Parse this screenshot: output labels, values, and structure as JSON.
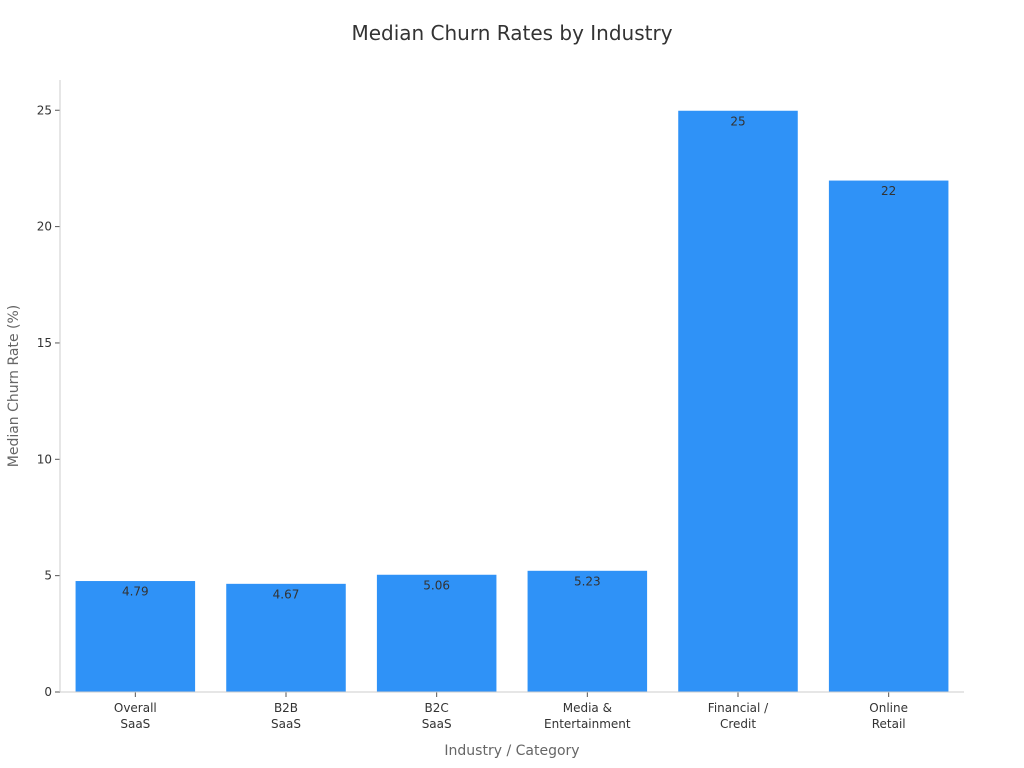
{
  "chart_data": {
    "type": "bar",
    "title": "Median Churn Rates by Industry",
    "xlabel": "Industry / Category",
    "ylabel": "Median Churn Rate (%)",
    "categories": [
      [
        "Overall",
        "SaaS"
      ],
      [
        "B2B",
        "SaaS"
      ],
      [
        "B2C",
        "SaaS"
      ],
      [
        "Media &",
        "Entertainment"
      ],
      [
        "Financial /",
        "Credit"
      ],
      [
        "Online",
        "Retail"
      ]
    ],
    "values": [
      4.79,
      4.67,
      5.06,
      5.23,
      25,
      22
    ],
    "value_labels": [
      "4.79",
      "4.67",
      "5.06",
      "5.23",
      "25",
      "22"
    ],
    "ylim": [
      0,
      26.3
    ],
    "yticks": [
      0,
      5,
      10,
      15,
      20,
      25
    ],
    "grid": false,
    "bar_color": "#2f92f7"
  }
}
